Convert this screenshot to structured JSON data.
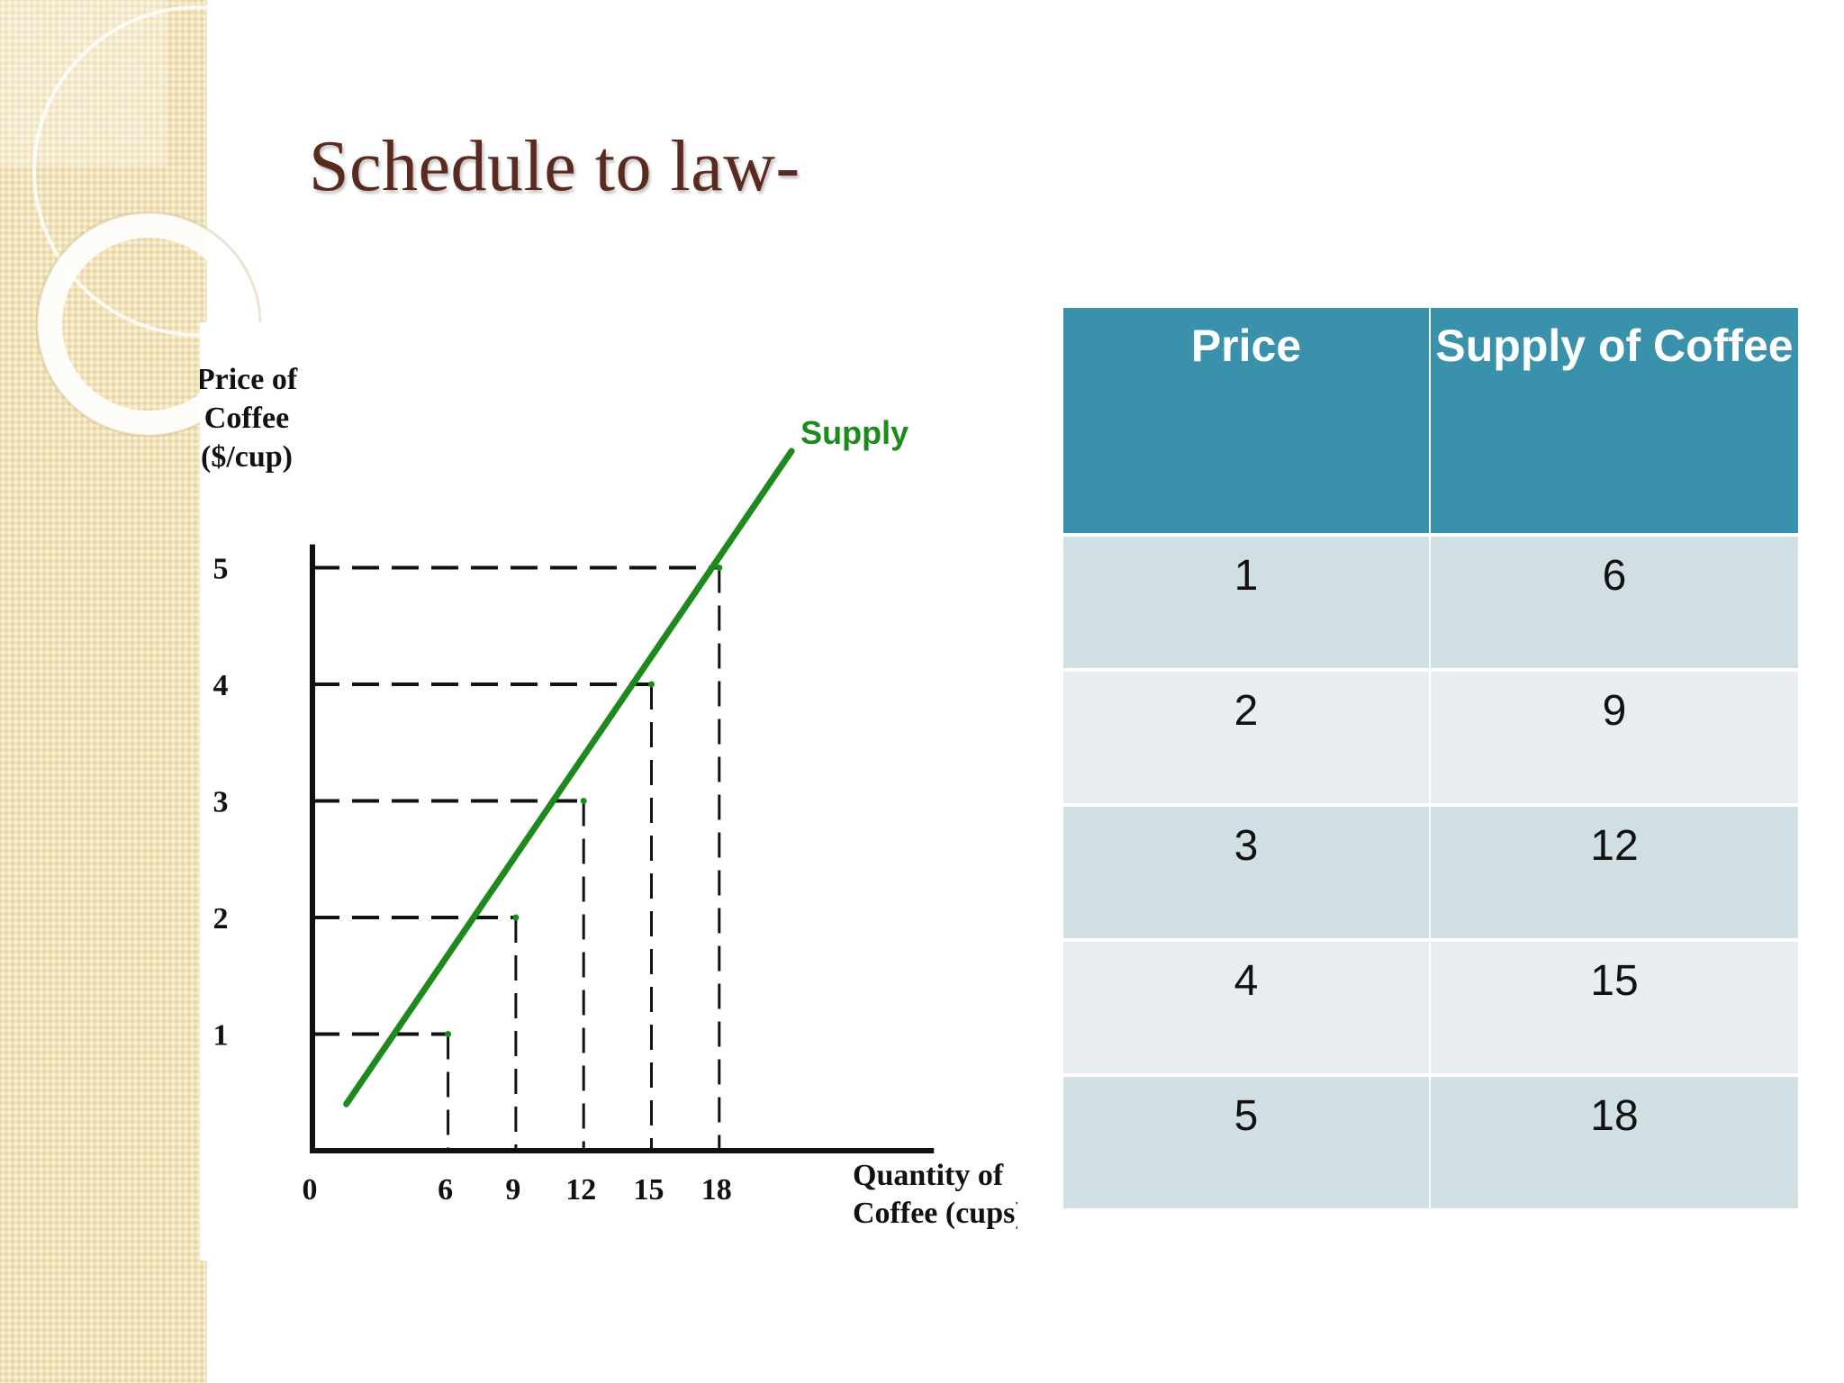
{
  "slide": {
    "title": "Schedule to law-"
  },
  "colors": {
    "title": "#5a2a1f",
    "supply_line": "#1e8a1e",
    "supply_label": "#1e8a1e",
    "table_header_bg": "#3991ab",
    "table_row_odd": "#cfdfe3",
    "table_row_even": "#e8edf1",
    "sidebar": "#f1e2b7"
  },
  "chart_data": {
    "type": "line",
    "title": "",
    "ylabel_lines": [
      "Price of",
      "Coffee",
      "($/cup)"
    ],
    "xlabel_lines": [
      "Quantity of",
      "Coffee (cups)"
    ],
    "origin_label": "0",
    "x_ticks": [
      6,
      9,
      12,
      15,
      18
    ],
    "y_ticks": [
      1,
      2,
      3,
      4,
      5
    ],
    "xlim": [
      0,
      27.5
    ],
    "ylim": [
      0,
      5.2
    ],
    "grid": false,
    "dashed_guides": true,
    "series": [
      {
        "name": "Supply",
        "line": {
          "x": [
            1.5,
            21.2
          ],
          "y": [
            0.4,
            6.0
          ]
        },
        "points": [
          {
            "x": 6,
            "y": 1
          },
          {
            "x": 9,
            "y": 2
          },
          {
            "x": 12,
            "y": 3
          },
          {
            "x": 15,
            "y": 4
          },
          {
            "x": 18,
            "y": 5
          }
        ]
      }
    ]
  },
  "table": {
    "headers": [
      "Price",
      "Supply of Coffee"
    ],
    "rows": [
      {
        "price": "1",
        "supply": "6"
      },
      {
        "price": "2",
        "supply": "9"
      },
      {
        "price": "3",
        "supply": "12"
      },
      {
        "price": "4",
        "supply": "15"
      },
      {
        "price": "5",
        "supply": "18"
      }
    ]
  }
}
